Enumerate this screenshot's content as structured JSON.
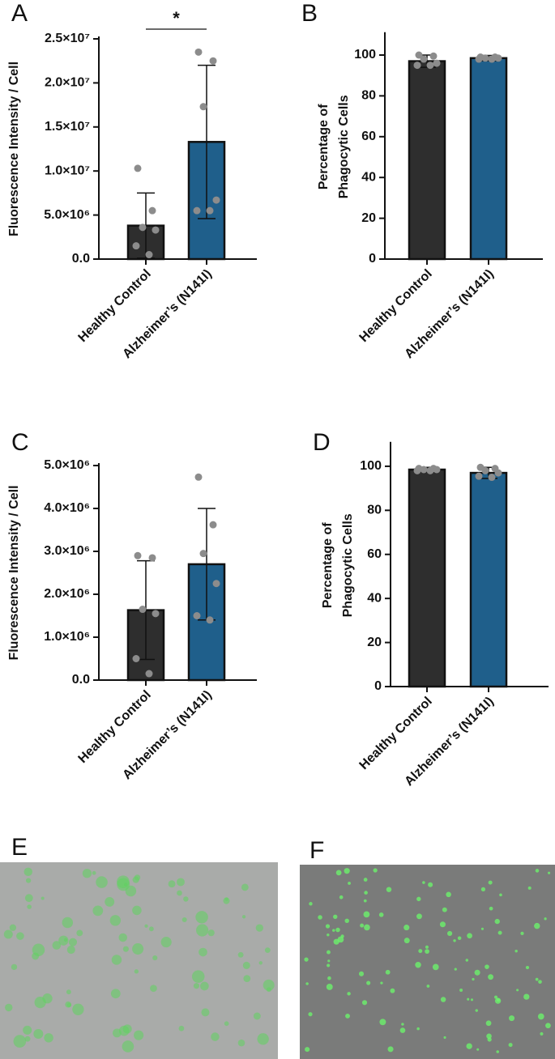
{
  "chart_data": [
    {
      "type": "bar",
      "panel": "A",
      "ylabel": [
        "Fluorescence Intensity / Cell"
      ],
      "categories": [
        "Healthy Control",
        "Alzheimer’s (N141I)"
      ],
      "values": [
        3800000,
        13300000
      ],
      "errors": [
        3700000,
        8700000
      ],
      "points": [
        [
          10300000,
          5500000,
          3600000,
          3300000,
          1500000,
          500000
        ],
        [
          23500000,
          22500000,
          17300000,
          6700000,
          5500000,
          5500000
        ]
      ],
      "colors": [
        "#2e2e2e",
        "#1f5f8b"
      ],
      "annotation": "*",
      "ylim": [
        0,
        25000000
      ],
      "yticks": [
        {
          "value": 0,
          "label": "0.0"
        },
        {
          "value": 5000000,
          "label": "5.0×10⁶"
        },
        {
          "value": 10000000,
          "label": "1.0×10⁷"
        },
        {
          "value": 15000000,
          "label": "1.5×10⁷"
        },
        {
          "value": 20000000,
          "label": "2.0×10⁷"
        },
        {
          "value": 25000000,
          "label": "2.5×10⁷"
        }
      ]
    },
    {
      "type": "bar",
      "panel": "B",
      "ylabel": [
        "Percentage of",
        "Phagocytic Cells"
      ],
      "categories": [
        "Healthy Control",
        "Alzheimer’s (N141I)"
      ],
      "values": [
        97,
        98.5
      ],
      "errors": [
        3,
        1.3
      ],
      "points": [
        [
          100,
          99.5,
          98,
          96,
          95,
          95
        ],
        [
          99,
          99,
          98.5,
          98.5,
          98,
          98
        ]
      ],
      "colors": [
        "#2e2e2e",
        "#1f5f8b"
      ],
      "ylim": [
        0,
        110
      ],
      "yticks": [
        0,
        20,
        40,
        60,
        80,
        100
      ]
    },
    {
      "type": "bar",
      "panel": "C",
      "ylabel": [
        "Fluorescence Intensity / Cell"
      ],
      "categories": [
        "Healthy Control",
        "Alzheimer’s (N141I)"
      ],
      "values": [
        1630000,
        2700000
      ],
      "errors": [
        1150000,
        1300000
      ],
      "points": [
        [
          2900000,
          2850000,
          1650000,
          1550000,
          500000,
          150000
        ],
        [
          4730000,
          3620000,
          2950000,
          2250000,
          1500000,
          1400000
        ]
      ],
      "colors": [
        "#2e2e2e",
        "#1f5f8b"
      ],
      "ylim": [
        0,
        5000000
      ],
      "yticks": [
        {
          "value": 0,
          "label": "0.0"
        },
        {
          "value": 1000000,
          "label": "1.0×10⁶"
        },
        {
          "value": 2000000,
          "label": "2.0×10⁶"
        },
        {
          "value": 3000000,
          "label": "3.0×10⁶"
        },
        {
          "value": 4000000,
          "label": "4.0×10⁶"
        },
        {
          "value": 5000000,
          "label": "5.0×10⁶"
        }
      ]
    },
    {
      "type": "bar",
      "panel": "D",
      "ylabel": [
        "Percentage of",
        "Phagocytic Cells"
      ],
      "categories": [
        "Healthy Control",
        "Alzheimer’s (N141I)"
      ],
      "values": [
        98.5,
        97
      ],
      "errors": [
        1,
        2.5
      ],
      "points": [
        [
          99,
          99,
          98.5,
          98.5,
          98,
          98
        ],
        [
          99.5,
          99,
          98,
          97,
          95.5,
          95
        ]
      ],
      "colors": [
        "#2e2e2e",
        "#1f5f8b"
      ],
      "ylim": [
        0,
        110
      ],
      "yticks": [
        0,
        20,
        40,
        60,
        80,
        100
      ]
    }
  ],
  "images": [
    {
      "panel": "E"
    },
    {
      "panel": "F"
    }
  ]
}
